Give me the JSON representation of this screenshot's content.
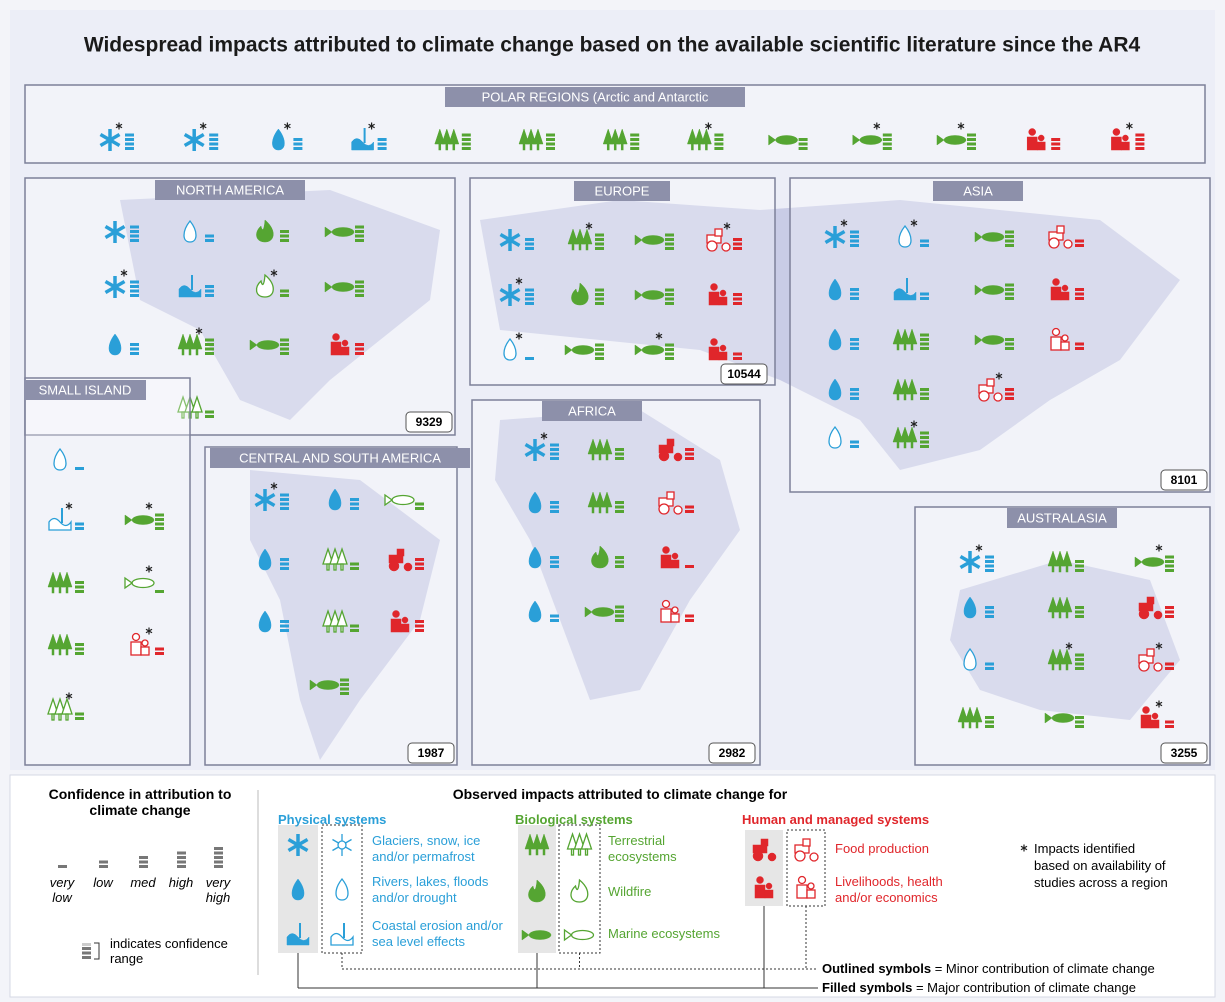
{
  "title": "Widespread impacts attributed to climate change based on the available scientific literature since the AR4",
  "regions": {
    "polar": {
      "label": "POLAR REGIONS (Arctic and Antarctic"
    },
    "north_america": {
      "label": "NORTH AMERICA",
      "count": 9329
    },
    "europe": {
      "label": "EUROPE",
      "count": 10544
    },
    "asia": {
      "label": "ASIA",
      "count": 8101
    },
    "small_islands": {
      "label": "SMALL ISLAND"
    },
    "central_south_america": {
      "label": "CENTRAL AND SOUTH AMERICA",
      "count": 1987
    },
    "africa": {
      "label": "AFRICA",
      "count": 2982
    },
    "australasia": {
      "label": "AUSTRALASIA",
      "count": 3255
    }
  },
  "legend": {
    "confidence": {
      "title": "Confidence in attribution to climate change",
      "levels": [
        "very low",
        "low",
        "med",
        "high",
        "very high"
      ],
      "range_note": "indicates confidence range"
    },
    "observed_title": "Observed impacts attributed to climate change for",
    "groups": [
      {
        "name": "Physical systems",
        "items": [
          "Glaciers, snow, ice and/or permafrost",
          "Rivers, lakes, floods and/or drought",
          "Coastal erosion and/or sea level effects"
        ]
      },
      {
        "name": "Biological systems",
        "items": [
          "Terrestrial ecosystems",
          "Wildfire",
          "Marine ecosystems"
        ]
      },
      {
        "name": "Human and managed systems",
        "items": [
          "Food production",
          "Livelihoods, health and/or economics"
        ]
      }
    ],
    "star_note": "Impacts identified based on availability of studies across a region",
    "outlined": {
      "term": "Outlined symbols",
      "meaning": "= Minor contribution of climate change"
    },
    "filled": {
      "term": "Filled symbols",
      "meaning": "= Major contribution of climate change"
    }
  }
}
